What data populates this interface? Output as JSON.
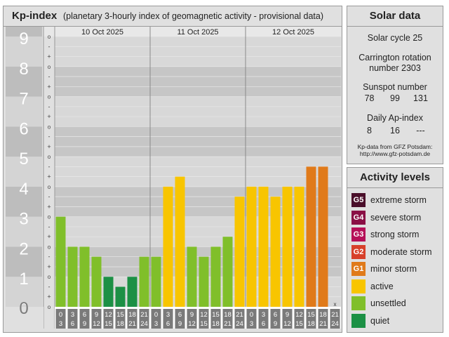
{
  "kp_panel": {
    "title": "Kp-index",
    "subtitle": "(planetary 3-hourly index of geomagnetic activity - provisional data)"
  },
  "chart_data": {
    "type": "bar",
    "title": "Kp-index",
    "subtitle": "(planetary 3-hourly index of geomagnetic activity - provisional data)",
    "ylim": [
      0,
      9
    ],
    "yticks": [
      "0",
      "1",
      "2",
      "3",
      "4",
      "5",
      "6",
      "7",
      "8",
      "9"
    ],
    "minor_marks": [
      "+",
      "o",
      "-"
    ],
    "days": [
      "10 Oct 2025",
      "11 Oct 2025",
      "12 Oct 2025"
    ],
    "interval_starts": [
      "0",
      "3",
      "6",
      "9",
      "12",
      "15",
      "18",
      "21"
    ],
    "interval_ends": [
      "3",
      "6",
      "9",
      "12",
      "15",
      "18",
      "21",
      "24"
    ],
    "missing_marker": "x",
    "values": [
      3.0,
      2.0,
      2.0,
      1.667,
      1.0,
      0.667,
      1.0,
      1.667,
      1.667,
      4.0,
      4.333,
      2.0,
      1.667,
      2.0,
      2.333,
      3.667,
      4.0,
      4.0,
      3.667,
      4.0,
      4.0,
      4.667,
      4.667,
      null
    ],
    "colors_by_level": {
      "quiet": "#1c9045",
      "unsettled": "#80bf2a",
      "active": "#f8c500",
      "minor": "#e07a1a"
    },
    "bar_levels": [
      "unsettled",
      "unsettled",
      "unsettled",
      "unsettled",
      "quiet",
      "quiet",
      "quiet",
      "unsettled",
      "unsettled",
      "active",
      "active",
      "unsettled",
      "unsettled",
      "unsettled",
      "unsettled",
      "active",
      "active",
      "active",
      "active",
      "active",
      "active",
      "minor",
      "minor",
      "none"
    ]
  },
  "solar": {
    "title": "Solar data",
    "cycle": "Solar cycle 25",
    "carrington_line1": "Carrington rotation",
    "carrington_line2": "number 2303",
    "sunspot_label": "Sunspot number",
    "sunspot_values": [
      "78",
      "99",
      "131"
    ],
    "ap_label": "Daily Ap-index",
    "ap_values": [
      "8",
      "16",
      "---"
    ],
    "source_line1": "Kp-data from GFZ Potsdam:",
    "source_line2": "http://www.gfz-potsdam.de"
  },
  "activity": {
    "title": "Activity levels",
    "items": [
      {
        "code": "G5",
        "label": "extreme storm",
        "color": "#4a0f2a"
      },
      {
        "code": "G4",
        "label": "severe storm",
        "color": "#8a0f45"
      },
      {
        "code": "G3",
        "label": "strong storm",
        "color": "#b51058"
      },
      {
        "code": "G2",
        "label": "moderate storm",
        "color": "#d7402a"
      },
      {
        "code": "G1",
        "label": "minor storm",
        "color": "#e07a1a"
      },
      {
        "code": "",
        "label": "active",
        "color": "#f8c500"
      },
      {
        "code": "",
        "label": "unsettled",
        "color": "#80bf2a"
      },
      {
        "code": "",
        "label": "quiet",
        "color": "#1c9045"
      }
    ]
  }
}
